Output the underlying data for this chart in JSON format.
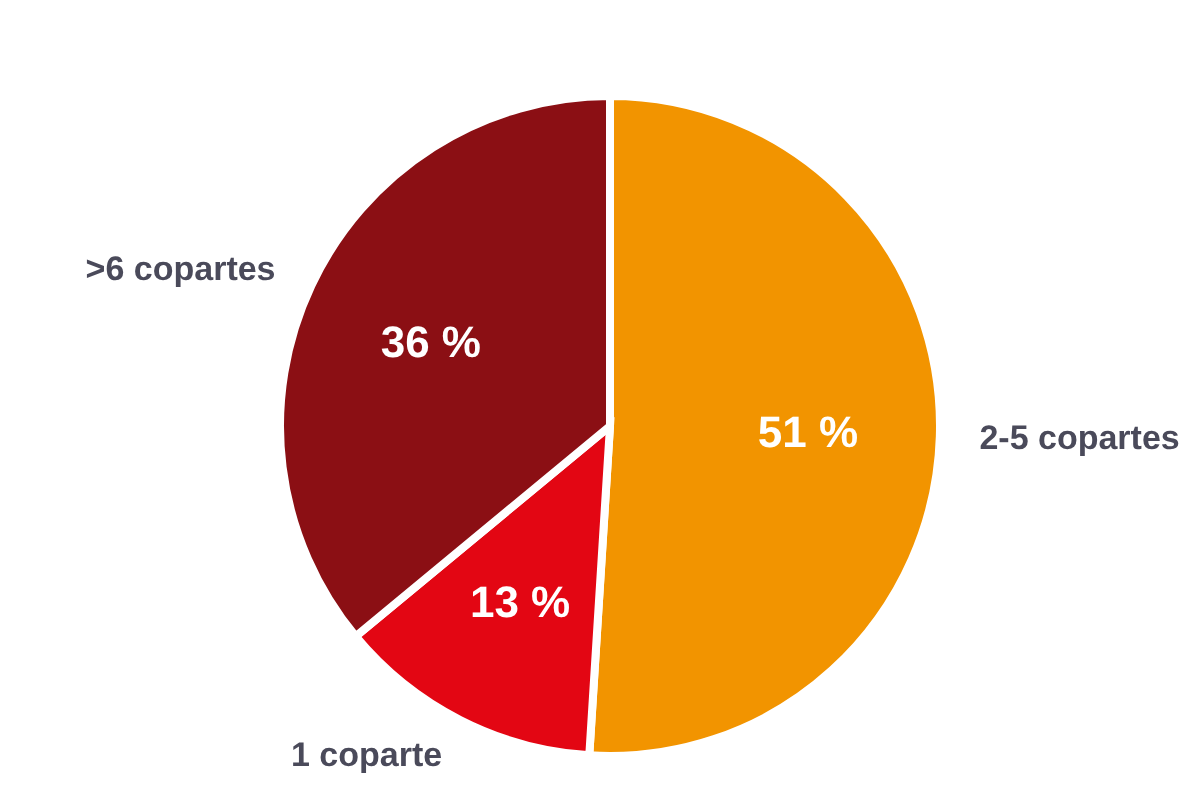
{
  "chart_data": {
    "type": "pie",
    "categories": [
      "2-5 copartes",
      "1 coparte",
      ">6 copartes"
    ],
    "values": [
      51,
      13,
      36
    ],
    "colors": [
      "#f29400",
      "#e30613",
      "#8b0f14"
    ],
    "value_labels": [
      "51 %",
      "13 %",
      "36 %"
    ]
  }
}
